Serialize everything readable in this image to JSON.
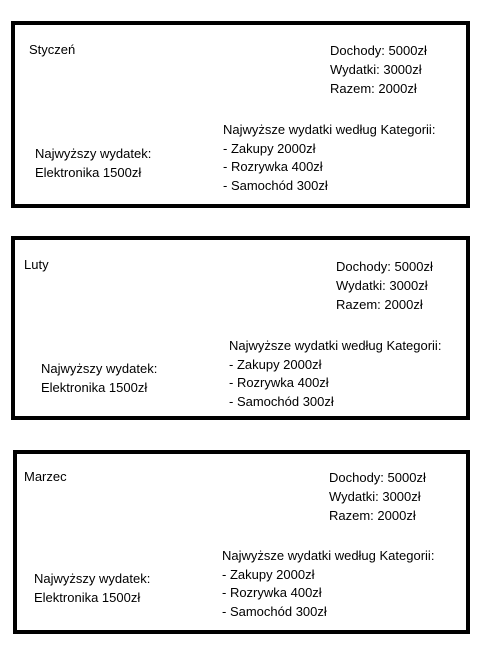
{
  "months": [
    {
      "name": "Styczeń",
      "summary": {
        "income": "Dochody: 5000zł",
        "expenses": "Wydatki: 3000zł",
        "total": "Razem: 2000zł"
      },
      "top_expense": {
        "label": "Najwyższy wydatek:",
        "value": "Elektronika 1500zł"
      },
      "categories": {
        "title": "Najwyższe wydatki według Kategorii:",
        "items": [
          "- Zakupy 2000zł",
          "- Rozrywka 400zł",
          "- Samochód 300zł"
        ]
      }
    },
    {
      "name": "Luty",
      "summary": {
        "income": "Dochody: 5000zł",
        "expenses": "Wydatki: 3000zł",
        "total": "Razem: 2000zł"
      },
      "top_expense": {
        "label": "Najwyższy wydatek:",
        "value": "Elektronika 1500zł"
      },
      "categories": {
        "title": "Najwyższe wydatki według Kategorii:",
        "items": [
          "- Zakupy 2000zł",
          "- Rozrywka 400zł",
          "- Samochód 300zł"
        ]
      }
    },
    {
      "name": "Marzec",
      "summary": {
        "income": "Dochody: 5000zł",
        "expenses": "Wydatki: 3000zł",
        "total": "Razem: 2000zł"
      },
      "top_expense": {
        "label": "Najwyższy wydatek:",
        "value": "Elektronika 1500zł"
      },
      "categories": {
        "title": "Najwyższe wydatki według Kategorii:",
        "items": [
          "- Zakupy 2000zł",
          "- Rozrywka 400zł",
          "- Samochód 300zł"
        ]
      }
    }
  ]
}
